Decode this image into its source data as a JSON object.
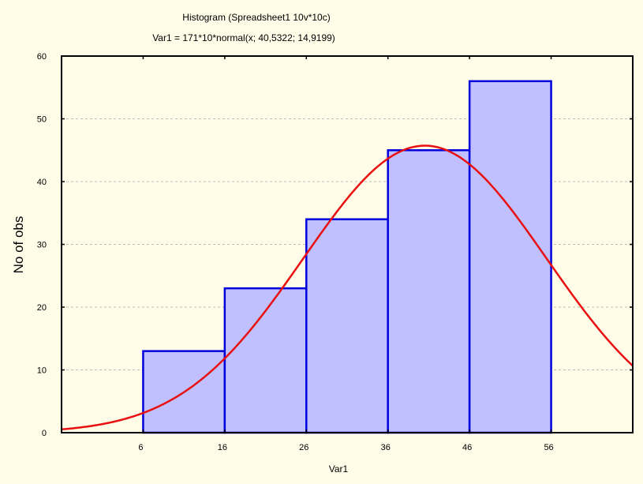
{
  "chart_data": {
    "type": "bar",
    "subtype": "histogram",
    "title": "Histogram (Spreadsheet1 10v*10c)",
    "subtitle": "Var1 = 171*10*normal(x; 40,5322; 14,9199)",
    "xlabel": "Var1",
    "ylabel": "No of obs",
    "bins": [
      {
        "from": 6,
        "to": 16,
        "count": 13
      },
      {
        "from": 16,
        "to": 26,
        "count": 23
      },
      {
        "from": 26,
        "to": 36,
        "count": 34
      },
      {
        "from": 36,
        "to": 46,
        "count": 45
      },
      {
        "from": 46,
        "to": 56,
        "count": 56
      }
    ],
    "xlim": [
      -4,
      66
    ],
    "ylim": [
      0,
      60
    ],
    "x_ticks": [
      "6",
      "16",
      "26",
      "36",
      "46",
      "56"
    ],
    "y_ticks": [
      "0",
      "10",
      "20",
      "30",
      "40",
      "50",
      "60"
    ],
    "fit_curve": {
      "type": "normal",
      "total": 171,
      "bin_width": 10,
      "mean": 40.5322,
      "sd": 14.9199
    },
    "grid": "horizontal-dashed",
    "colors": {
      "background": "#fffce8",
      "bar_fill": "#c0c0ff",
      "bar_stroke": "#0000dd",
      "curve": "#e81010",
      "grid": "#bdbdbd"
    }
  }
}
